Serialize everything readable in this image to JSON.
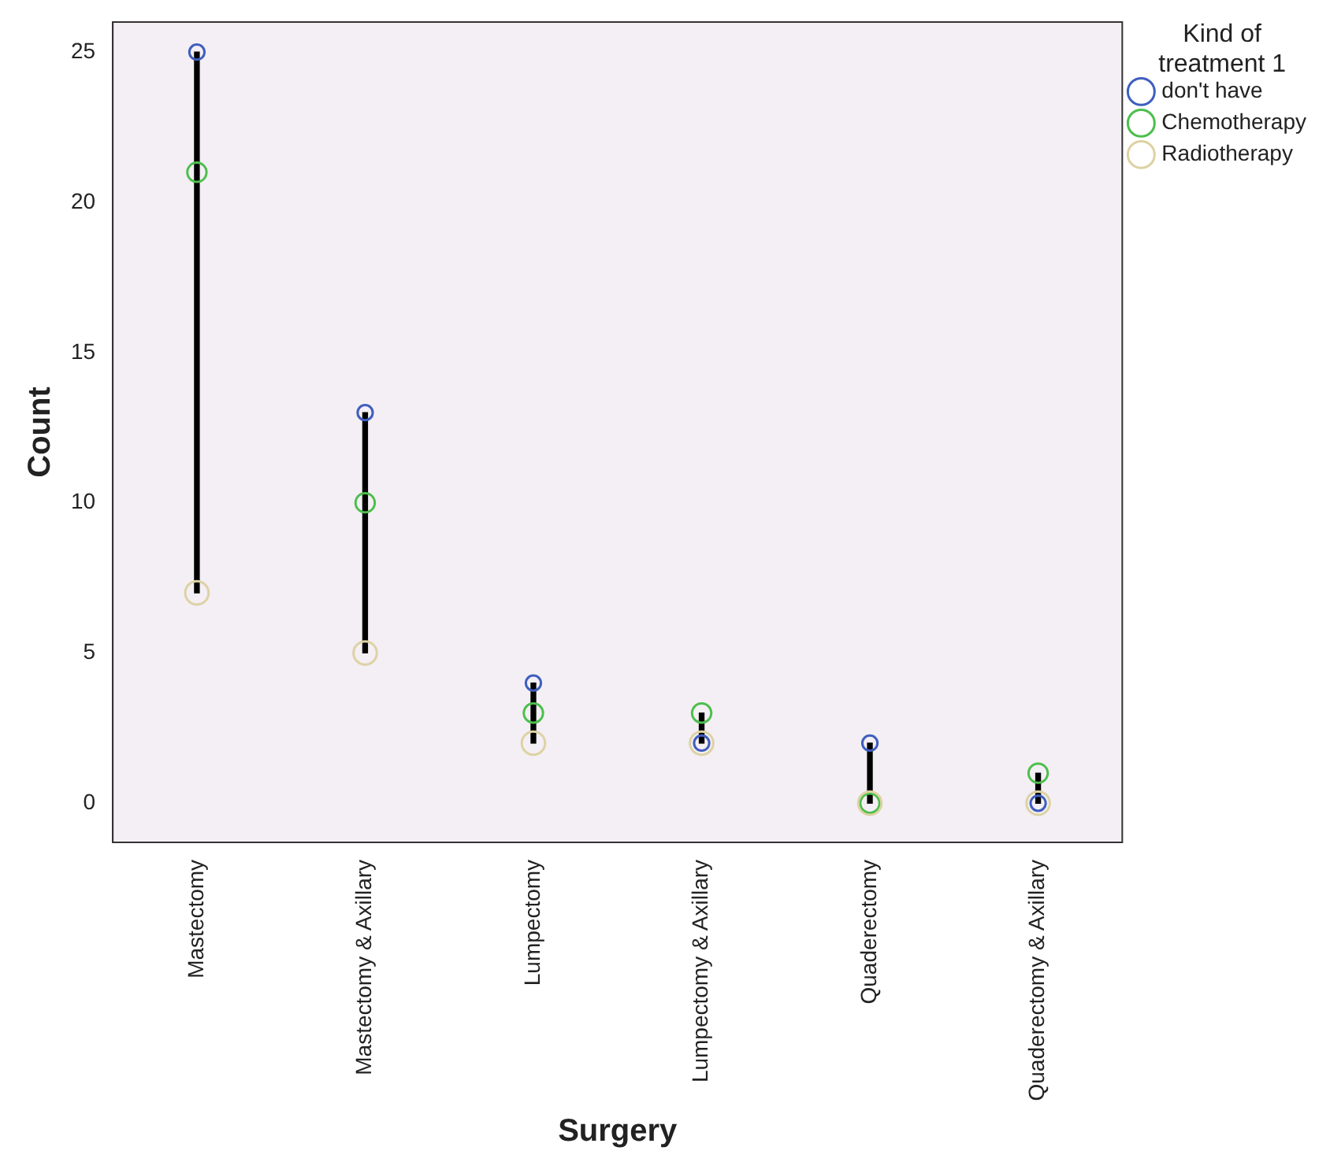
{
  "chart_data": {
    "type": "scatter",
    "xlabel": "Surgery",
    "ylabel": "Count",
    "legend_title": "Kind of treatment 1",
    "categories": [
      "Mastectomy",
      "Mastectomy & Axillary",
      "Lumpectomy",
      "Lumpectomy & Axillary",
      "Quaderectomy",
      "Quaderectomy & Axillary"
    ],
    "series": [
      {
        "type": "bar",
        "color": "#000000",
        "base": [
          7,
          5,
          2,
          2,
          0,
          0
        ],
        "values": [
          18,
          8,
          2,
          1,
          2,
          1
        ]
      },
      {
        "name": "don't have",
        "color": "#3f5fbf",
        "values": [
          25,
          13,
          4,
          2,
          2,
          0
        ]
      },
      {
        "name": "Chemotherapy",
        "color": "#4cbf4c",
        "values": [
          21,
          10,
          3,
          3,
          0,
          1
        ]
      },
      {
        "name": "Radiotherapy",
        "color": "#ddd2a4",
        "values": [
          7,
          5,
          2,
          2,
          0,
          0
        ]
      }
    ],
    "ylim": [
      -1.3,
      26
    ],
    "yticks": [
      0,
      5,
      10,
      15,
      20,
      25
    ],
    "grid": false,
    "legend": "top right",
    "marker": "circle"
  }
}
